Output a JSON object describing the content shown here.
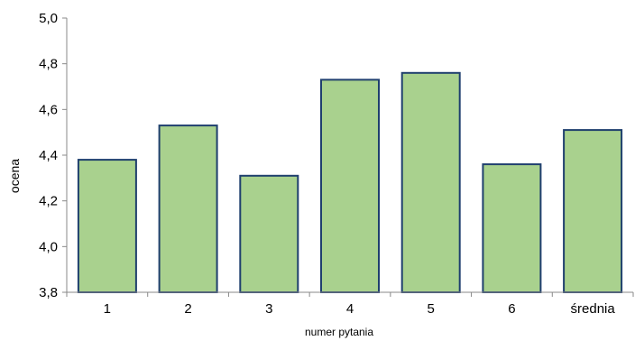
{
  "chart_data": {
    "type": "bar",
    "categories": [
      "1",
      "2",
      "3",
      "4",
      "5",
      "6",
      "średnia"
    ],
    "values": [
      4.38,
      4.53,
      4.31,
      4.73,
      4.76,
      4.36,
      4.51
    ],
    "xlabel": "numer pytania",
    "ylabel": "ocena",
    "ylim": [
      3.8,
      5.0
    ],
    "yticks": [
      "3,8",
      "4,0",
      "4,2",
      "4,4",
      "4,6",
      "4,8",
      "5,0"
    ],
    "grid": false,
    "legend": "none",
    "colors": {
      "bar_fill": "#a9d18e",
      "bar_stroke": "#1f3f6e",
      "axis": "#888888"
    }
  }
}
